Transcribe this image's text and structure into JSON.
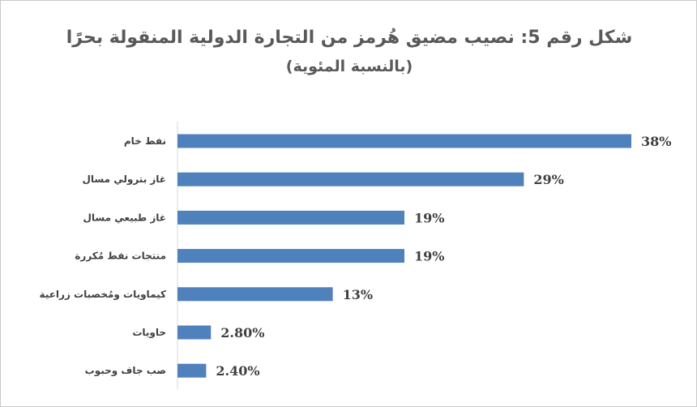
{
  "chart_data": {
    "type": "bar",
    "orientation": "horizontal",
    "title": "شكل رقم 5: نصيب مضيق هُرمز من التجارة الدولية المنقولة بحرًا",
    "subtitle": "(بالنسبة المئوية)",
    "categories": [
      "نفط خام",
      "غاز بترولي مسال",
      "غاز طبيعي مسال",
      "منتجات نفط مُكررة",
      "كيماويات ومُخصبات زراعية",
      "حاويات",
      "صب جاف وحبوب"
    ],
    "values": [
      38,
      29,
      19,
      19,
      13,
      2.8,
      2.4
    ],
    "data_labels": [
      "38%",
      "29%",
      "19%",
      "19%",
      "13%",
      "2.80%",
      "2.40%"
    ],
    "xlim": [
      0,
      38
    ],
    "grid": false,
    "legend": "none",
    "bar_color": "#4f81bd"
  }
}
